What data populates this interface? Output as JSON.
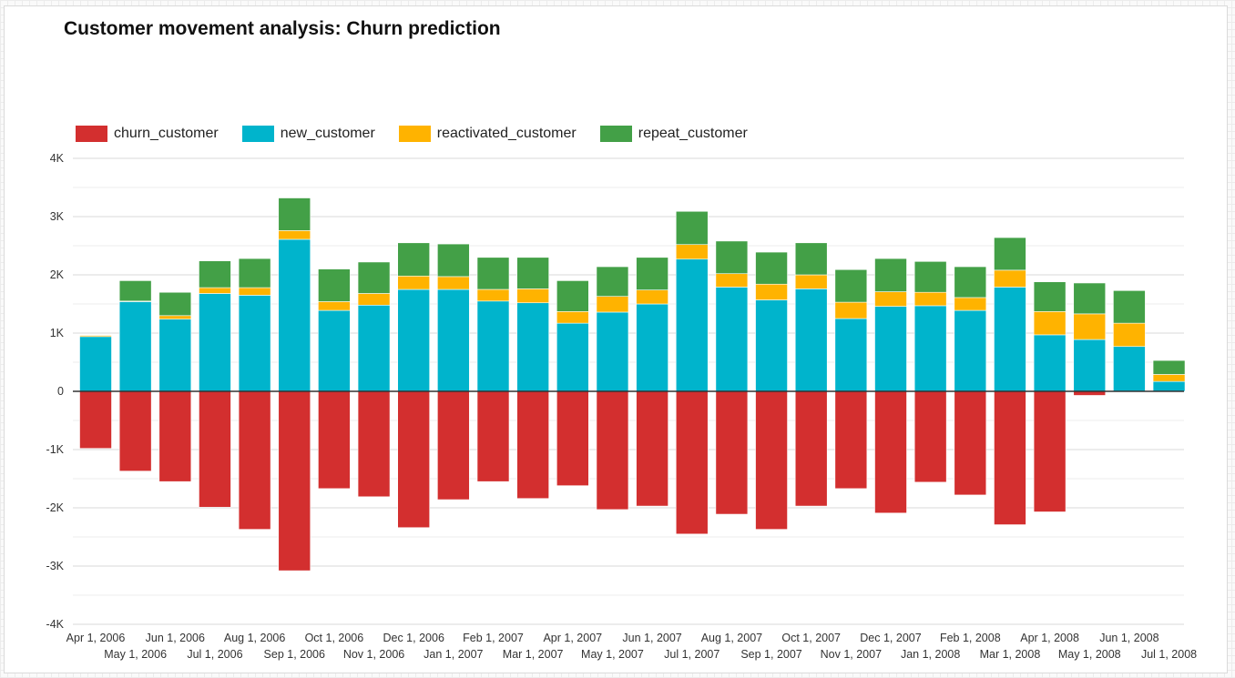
{
  "page": {
    "title": "Customer movement analysis: Churn prediction"
  },
  "chart_data": {
    "type": "bar",
    "stacked": true,
    "title": "Customer movement analysis: Churn prediction",
    "xlabel": "",
    "ylabel": "",
    "ylim": [
      -4000,
      4000
    ],
    "y_ticks": [
      {
        "value": 4000,
        "label": "4K"
      },
      {
        "value": 3000,
        "label": "3K"
      },
      {
        "value": 2000,
        "label": "2K"
      },
      {
        "value": 1000,
        "label": "1K"
      },
      {
        "value": 0,
        "label": "0"
      },
      {
        "value": -1000,
        "label": "-1K"
      },
      {
        "value": -2000,
        "label": "-2K"
      },
      {
        "value": -3000,
        "label": "-3K"
      },
      {
        "value": -4000,
        "label": "-4K"
      }
    ],
    "grid": true,
    "legend_position": "top-left",
    "categories": [
      "Apr 1, 2006",
      "May 1, 2006",
      "Jun 1, 2006",
      "Jul 1, 2006",
      "Aug 1, 2006",
      "Sep 1, 2006",
      "Oct 1, 2006",
      "Nov 1, 2006",
      "Dec 1, 2006",
      "Jan 1, 2007",
      "Feb 1, 2007",
      "Mar 1, 2007",
      "Apr 1, 2007",
      "May 1, 2007",
      "Jun 1, 2007",
      "Jul 1, 2007",
      "Aug 1, 2007",
      "Sep 1, 2007",
      "Oct 1, 2007",
      "Nov 1, 2007",
      "Dec 1, 2007",
      "Jan 1, 2008",
      "Feb 1, 2008",
      "Mar 1, 2008",
      "Apr 1, 2008",
      "May 1, 2008",
      "Jun 1, 2008",
      "Jul 1, 2008"
    ],
    "series": [
      {
        "name": "churn_customer",
        "color": "#d32f2f",
        "values": [
          -980,
          -1370,
          -1550,
          -1990,
          -2370,
          -3080,
          -1670,
          -1810,
          -2340,
          -1860,
          -1550,
          -1840,
          -1620,
          -2030,
          -1970,
          -2450,
          -2110,
          -2370,
          -1970,
          -1670,
          -2090,
          -1560,
          -1780,
          -2290,
          -2070,
          -70,
          0,
          0
        ]
      },
      {
        "name": "new_customer",
        "color": "#00b4cc",
        "values": [
          940,
          1540,
          1240,
          1680,
          1650,
          2610,
          1390,
          1480,
          1750,
          1750,
          1550,
          1520,
          1170,
          1360,
          1500,
          2270,
          1790,
          1570,
          1760,
          1250,
          1460,
          1470,
          1390,
          1790,
          970,
          890,
          770,
          170
        ]
      },
      {
        "name": "reactivated_customer",
        "color": "#ffb300",
        "values": [
          20,
          10,
          60,
          100,
          130,
          150,
          150,
          200,
          230,
          220,
          200,
          240,
          200,
          270,
          240,
          250,
          230,
          270,
          240,
          280,
          250,
          230,
          220,
          290,
          400,
          440,
          400,
          120
        ]
      },
      {
        "name": "repeat_customer",
        "color": "#43a047",
        "values": [
          0,
          350,
          400,
          460,
          500,
          560,
          560,
          540,
          570,
          560,
          550,
          540,
          530,
          510,
          560,
          570,
          560,
          550,
          550,
          560,
          570,
          530,
          530,
          560,
          510,
          530,
          560,
          240
        ]
      }
    ]
  }
}
